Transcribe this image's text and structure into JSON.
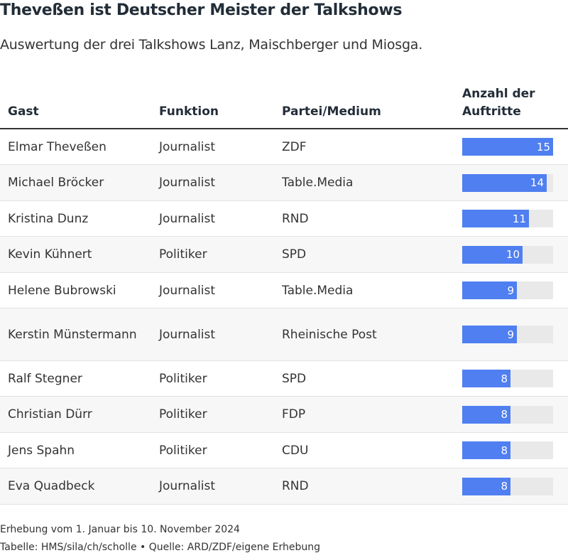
{
  "header": {
    "title": "Theveßen ist Deutscher Meister der Talkshows",
    "subtitle": "Auswertung der drei Talkshows Lanz, Maischberger und Miosga."
  },
  "columns": {
    "gast": "Gast",
    "funktion": "Funktion",
    "partei": "Partei/Medium",
    "anzahl": "Anzahl der Auftritte"
  },
  "colors": {
    "bar": "#4f7ff0",
    "track": "#e9e9e9"
  },
  "chart_data": {
    "type": "table",
    "xlim": [
      0,
      15
    ],
    "rows": [
      {
        "gast": "Elmar Theveßen",
        "funktion": "Journalist",
        "partei": "ZDF",
        "value": 15
      },
      {
        "gast": "Michael Bröcker",
        "funktion": "Journalist",
        "partei": "Table.Media",
        "value": 14
      },
      {
        "gast": "Kristina Dunz",
        "funktion": "Journalist",
        "partei": "RND",
        "value": 11
      },
      {
        "gast": "Kevin Kühnert",
        "funktion": "Politiker",
        "partei": "SPD",
        "value": 10
      },
      {
        "gast": "Helene Bubrowski",
        "funktion": "Journalist",
        "partei": "Table.Media",
        "value": 9
      },
      {
        "gast": "Kerstin Münstermann",
        "funktion": "Journalist",
        "partei": "Rheinische Post",
        "value": 9
      },
      {
        "gast": "Ralf Stegner",
        "funktion": "Politiker",
        "partei": "SPD",
        "value": 8
      },
      {
        "gast": "Christian Dürr",
        "funktion": "Politiker",
        "partei": "FDP",
        "value": 8
      },
      {
        "gast": "Jens Spahn",
        "funktion": "Politiker",
        "partei": "CDU",
        "value": 8
      },
      {
        "gast": "Eva Quadbeck",
        "funktion": "Journalist",
        "partei": "RND",
        "value": 8
      }
    ]
  },
  "footer": {
    "note": "Erhebung vom 1. Januar bis 10. November 2024",
    "source": "Tabelle: HMS/sila/ch/scholle • Quelle: ARD/ZDF/eigene Erhebung"
  }
}
